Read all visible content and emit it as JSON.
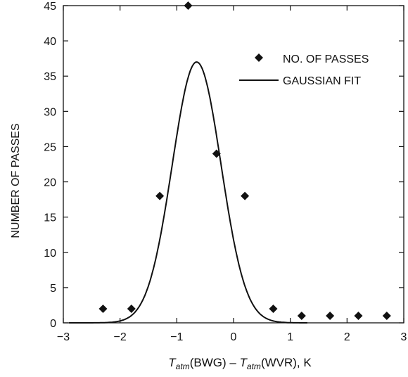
{
  "chart_data": {
    "type": "scatter",
    "xlim": [
      -3,
      3
    ],
    "ylim": [
      0,
      45
    ],
    "xticks": [
      -3,
      -2,
      -1,
      0,
      1,
      2,
      3
    ],
    "yticks": [
      0,
      5,
      10,
      15,
      20,
      25,
      30,
      35,
      40,
      45
    ],
    "xlabel": {
      "T": "T",
      "atm": "atm",
      "left": "(BWG) – ",
      "right": "(WVR), K"
    },
    "ylabel": "NUMBER OF PASSES",
    "legend": {
      "position": "top-right",
      "entries": [
        "NO. OF PASSES",
        "GAUSSIAN FIT"
      ]
    },
    "series": [
      {
        "name": "NO. OF PASSES",
        "kind": "markers",
        "marker": "diamond",
        "points": [
          [
            -2.3,
            2
          ],
          [
            -1.8,
            2
          ],
          [
            -1.3,
            18
          ],
          [
            -0.8,
            45
          ],
          [
            -0.3,
            24
          ],
          [
            0.2,
            18
          ],
          [
            0.7,
            2
          ],
          [
            1.2,
            1
          ],
          [
            1.7,
            1
          ],
          [
            2.2,
            1
          ],
          [
            2.7,
            1
          ]
        ]
      },
      {
        "name": "GAUSSIAN FIT",
        "kind": "line",
        "mean": -0.65,
        "sigma": 0.43,
        "amplitude": 37,
        "x_range": [
          -2.9,
          1.3
        ]
      }
    ],
    "grid": false,
    "colors": {
      "axes": "#111111",
      "marker": "#111111",
      "line": "#111111"
    }
  }
}
